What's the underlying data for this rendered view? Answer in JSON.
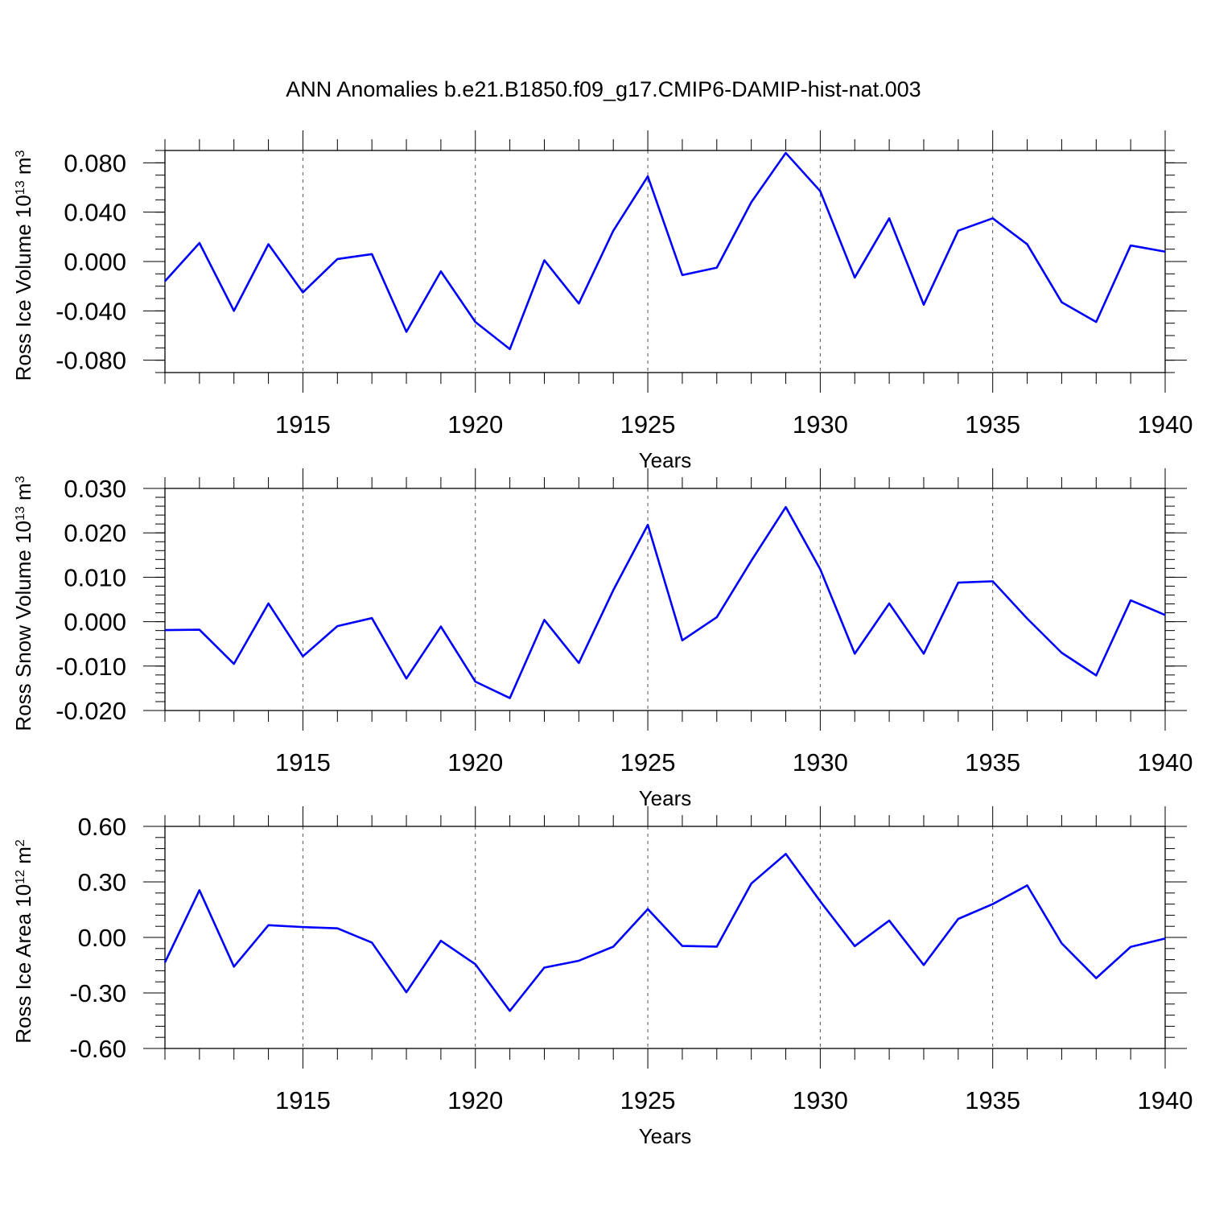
{
  "figure_title": "ANN Anomalies b.e21.B1850.f09_g17.CMIP6-DAMIP-hist-nat.003",
  "line_color": "#0000ff",
  "grid_color": "#555555",
  "chart_data": [
    {
      "type": "line",
      "ylabel": {
        "text": "Ross Ice Volume 10",
        "exp": "13",
        "unit": " m",
        "unit_exp": "3"
      },
      "xlabel": "Years",
      "xlim": [
        1911,
        1940
      ],
      "ylim": [
        -0.09,
        0.09
      ],
      "yticks": [
        -0.08,
        -0.04,
        0.0,
        0.04,
        0.08
      ],
      "ytick_labels": [
        "-0.080",
        "-0.040",
        "0.000",
        "0.040",
        "0.080"
      ],
      "yminor_step": 0.01,
      "xticks": [
        1915,
        1920,
        1925,
        1930,
        1935,
        1940
      ],
      "xtick_labels": [
        "1915",
        "1920",
        "1925",
        "1930",
        "1935",
        "1940"
      ],
      "grid": "vertical-dotted",
      "series": [
        {
          "x": [
            1911,
            1912,
            1913,
            1914,
            1915,
            1916,
            1917,
            1918,
            1919,
            1920,
            1921,
            1922,
            1923,
            1924,
            1925,
            1926,
            1927,
            1928,
            1929,
            1930,
            1931,
            1932,
            1933,
            1934,
            1935,
            1936,
            1937,
            1938,
            1939,
            1940
          ],
          "values": [
            -0.016,
            0.015,
            -0.04,
            0.014,
            -0.025,
            0.002,
            0.006,
            -0.057,
            -0.008,
            -0.049,
            -0.071,
            0.001,
            -0.034,
            0.025,
            0.069,
            -0.011,
            -0.005,
            0.048,
            0.088,
            0.057,
            -0.013,
            0.035,
            -0.035,
            0.025,
            0.035,
            0.014,
            -0.033,
            -0.049,
            0.013,
            0.008
          ]
        }
      ]
    },
    {
      "type": "line",
      "ylabel": {
        "text": "Ross Snow Volume 10",
        "exp": "13",
        "unit": " m",
        "unit_exp": "3"
      },
      "xlabel": "Years",
      "xlim": [
        1911,
        1940
      ],
      "ylim": [
        -0.02,
        0.03
      ],
      "yticks": [
        -0.02,
        -0.01,
        0.0,
        0.01,
        0.02,
        0.03
      ],
      "ytick_labels": [
        "-0.020",
        "-0.010",
        "0.000",
        "0.010",
        "0.020",
        "0.030"
      ],
      "yminor_step": 0.002,
      "xticks": [
        1915,
        1920,
        1925,
        1930,
        1935,
        1940
      ],
      "xtick_labels": [
        "1915",
        "1920",
        "1925",
        "1930",
        "1935",
        "1940"
      ],
      "grid": "vertical-dotted",
      "series": [
        {
          "x": [
            1911,
            1912,
            1913,
            1914,
            1915,
            1916,
            1917,
            1918,
            1919,
            1920,
            1921,
            1922,
            1923,
            1924,
            1925,
            1926,
            1927,
            1928,
            1929,
            1930,
            1931,
            1932,
            1933,
            1934,
            1935,
            1936,
            1937,
            1938,
            1939,
            1940
          ],
          "values": [
            -0.0019,
            -0.0018,
            -0.0095,
            0.0041,
            -0.0078,
            -0.001,
            0.0008,
            -0.0128,
            -0.0011,
            -0.0135,
            -0.0172,
            0.0004,
            -0.0093,
            0.0071,
            0.0218,
            -0.0042,
            0.001,
            0.0137,
            0.0258,
            0.0118,
            -0.0072,
            0.0041,
            -0.0072,
            0.0088,
            0.0091,
            0.0007,
            -0.007,
            -0.0121,
            0.0048,
            0.0015
          ]
        }
      ]
    },
    {
      "type": "line",
      "ylabel": {
        "text": "Ross Ice Area 10",
        "exp": "12",
        "unit": " m",
        "unit_exp": "2"
      },
      "xlabel": "Years",
      "xlim": [
        1911,
        1940
      ],
      "ylim": [
        -0.6,
        0.6
      ],
      "yticks": [
        -0.6,
        -0.3,
        0.0,
        0.3,
        0.6
      ],
      "ytick_labels": [
        "-0.60",
        "-0.30",
        "0.00",
        "0.30",
        "0.60"
      ],
      "yminor_step": 0.06,
      "xticks": [
        1915,
        1920,
        1925,
        1930,
        1935,
        1940
      ],
      "xtick_labels": [
        "1915",
        "1920",
        "1925",
        "1930",
        "1935",
        "1940"
      ],
      "grid": "vertical-dotted",
      "series": [
        {
          "x": [
            1911,
            1912,
            1913,
            1914,
            1915,
            1916,
            1917,
            1918,
            1919,
            1920,
            1921,
            1922,
            1923,
            1924,
            1925,
            1926,
            1927,
            1928,
            1929,
            1930,
            1931,
            1932,
            1933,
            1934,
            1935,
            1936,
            1937,
            1938,
            1939,
            1940
          ],
          "values": [
            -0.135,
            0.255,
            -0.158,
            0.066,
            0.056,
            0.049,
            -0.028,
            -0.296,
            -0.018,
            -0.145,
            -0.397,
            -0.163,
            -0.126,
            -0.05,
            0.153,
            -0.046,
            -0.05,
            0.291,
            0.451,
            0.195,
            -0.047,
            0.091,
            -0.149,
            0.1,
            0.18,
            0.281,
            -0.032,
            -0.22,
            -0.051,
            -0.006
          ]
        }
      ]
    }
  ]
}
